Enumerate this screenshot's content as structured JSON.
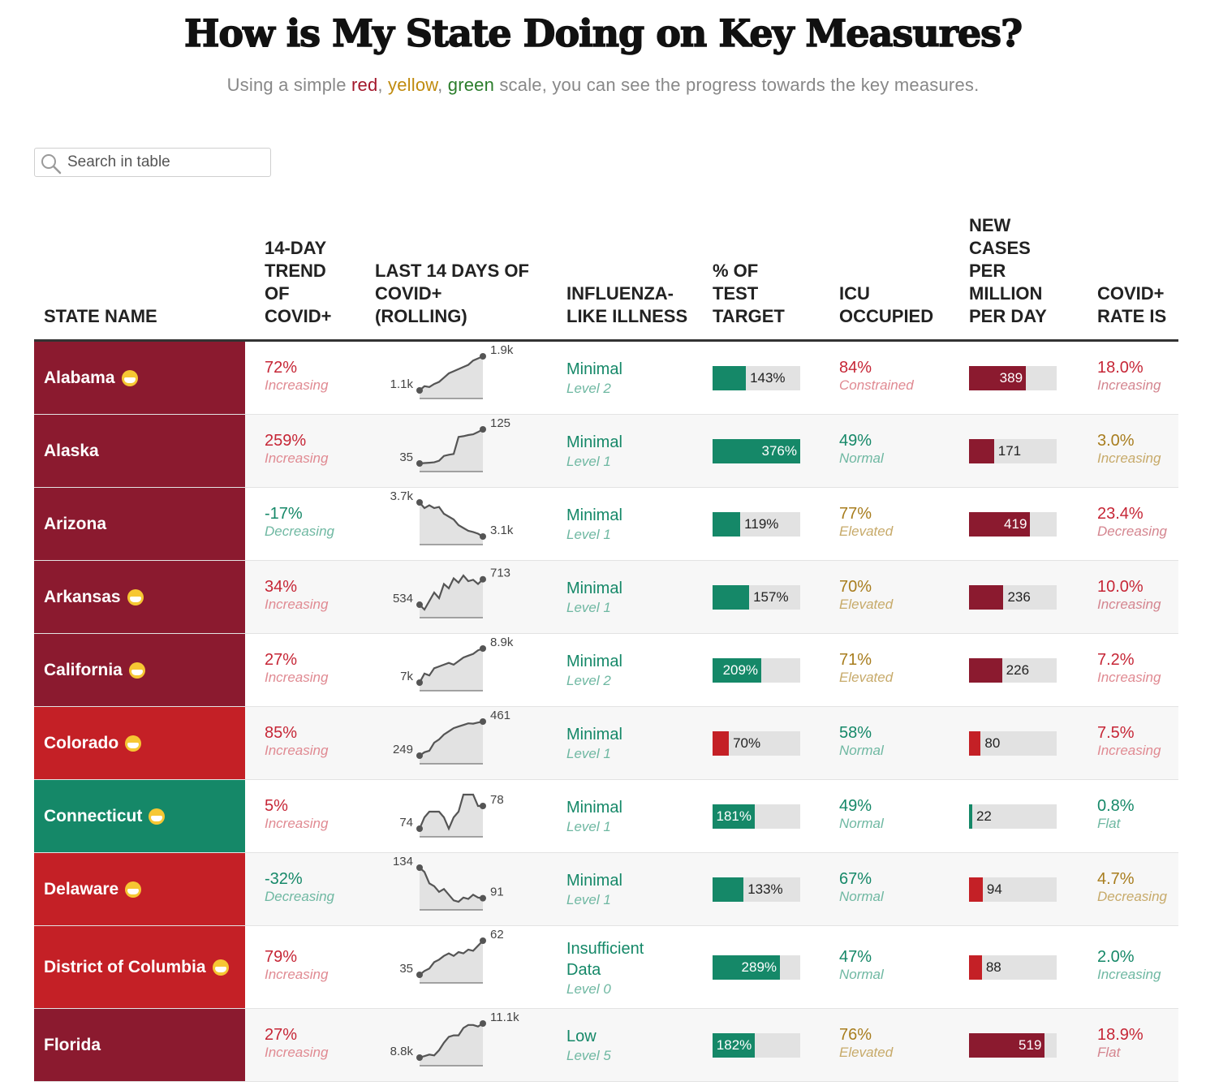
{
  "header": {
    "title": "How is My State Doing on Key Measures?",
    "subtitle_pre": "Using a simple ",
    "subtitle_red": "red",
    "subtitle_sep1": ", ",
    "subtitle_yellow": "yellow",
    "subtitle_sep2": ", ",
    "subtitle_green": "green",
    "subtitle_post": " scale, you can see the progress towards the key measures."
  },
  "search": {
    "placeholder": "Search in table",
    "value": ""
  },
  "columns": {
    "state": "STATE NAME",
    "trend": "14-DAY TREND OF COVID+",
    "spark": "LAST 14 DAYS OF COVID+ (ROLLING)",
    "ili": "INFLUENZA-LIKE ILLNESS",
    "test": "% OF TEST TARGET",
    "icu": "ICU OCCUPIED",
    "cases": "NEW CASES PER MILLION PER DAY",
    "rate": "COVID+ RATE IS"
  },
  "colors": {
    "dark_red": "#8b1a2f",
    "red": "#c42026",
    "green": "#158868",
    "yellow_text": "#a87d1e",
    "red_text": "#c62636",
    "green_text": "#158868",
    "bar_bg": "#e2e2e2"
  },
  "chart_data": {
    "type": "table",
    "rows": [
      {
        "state": "Alabama",
        "mask": true,
        "status": "dark_red",
        "trend": "72%",
        "trend_label": "Increasing",
        "trend_color": "red",
        "spark_start": "1.1k",
        "spark_end": "1.9k",
        "spark": [
          1.1,
          1.2,
          1.18,
          1.25,
          1.3,
          1.4,
          1.5,
          1.55,
          1.6,
          1.65,
          1.7,
          1.8,
          1.85,
          1.9
        ],
        "ili": "Minimal",
        "ili_level": "Level 2",
        "test": 143,
        "test_label": "143%",
        "test_color": "green",
        "icu": "84%",
        "icu_label": "Constrained",
        "icu_color": "red",
        "cases": 389,
        "cases_label": "389",
        "cases_color": "dark_red",
        "rate": "18.0%",
        "rate_label": "Increasing",
        "rate_color": "dark_red"
      },
      {
        "state": "Alaska",
        "mask": false,
        "status": "dark_red",
        "trend": "259%",
        "trend_label": "Increasing",
        "trend_color": "red",
        "spark_start": "35",
        "spark_end": "125",
        "spark": [
          35,
          36,
          37,
          38,
          42,
          55,
          58,
          60,
          105,
          107,
          110,
          112,
          118,
          125
        ],
        "ili": "Minimal",
        "ili_level": "Level 1",
        "test": 376,
        "test_label": "376%",
        "test_color": "green",
        "icu": "49%",
        "icu_label": "Normal",
        "icu_color": "green",
        "cases": 171,
        "cases_label": "171",
        "cases_color": "dark_red",
        "rate": "3.0%",
        "rate_label": "Increasing",
        "rate_color": "yellow"
      },
      {
        "state": "Arizona",
        "mask": false,
        "status": "dark_red",
        "trend": "-17%",
        "trend_label": "Decreasing",
        "trend_color": "green",
        "spark_start": "3.7k",
        "spark_end": "3.1k",
        "spark": [
          3.7,
          3.6,
          3.65,
          3.6,
          3.62,
          3.5,
          3.45,
          3.4,
          3.3,
          3.25,
          3.2,
          3.18,
          3.15,
          3.1
        ],
        "ili": "Minimal",
        "ili_level": "Level 1",
        "test": 119,
        "test_label": "119%",
        "test_color": "green",
        "icu": "77%",
        "icu_label": "Elevated",
        "icu_color": "yellow",
        "cases": 419,
        "cases_label": "419",
        "cases_color": "dark_red",
        "rate": "23.4%",
        "rate_label": "Decreasing",
        "rate_color": "dark_red"
      },
      {
        "state": "Arkansas",
        "mask": true,
        "status": "dark_red",
        "trend": "34%",
        "trend_label": "Increasing",
        "trend_color": "red",
        "spark_start": "534",
        "spark_end": "713",
        "spark": [
          534,
          500,
          560,
          620,
          580,
          680,
          650,
          720,
          690,
          740,
          700,
          710,
          680,
          713
        ],
        "ili": "Minimal",
        "ili_level": "Level 1",
        "test": 157,
        "test_label": "157%",
        "test_color": "green",
        "icu": "70%",
        "icu_label": "Elevated",
        "icu_color": "yellow",
        "cases": 236,
        "cases_label": "236",
        "cases_color": "dark_red",
        "rate": "10.0%",
        "rate_label": "Increasing",
        "rate_color": "dark_red"
      },
      {
        "state": "California",
        "mask": true,
        "status": "dark_red",
        "trend": "27%",
        "trend_label": "Increasing",
        "trend_color": "red",
        "spark_start": "7k",
        "spark_end": "8.9k",
        "spark": [
          7.0,
          7.5,
          7.4,
          7.8,
          7.9,
          8.0,
          8.1,
          8.0,
          8.2,
          8.4,
          8.5,
          8.6,
          8.8,
          8.9
        ],
        "ili": "Minimal",
        "ili_level": "Level 2",
        "test": 209,
        "test_label": "209%",
        "test_color": "green",
        "icu": "71%",
        "icu_label": "Elevated",
        "icu_color": "yellow",
        "cases": 226,
        "cases_label": "226",
        "cases_color": "dark_red",
        "rate": "7.2%",
        "rate_label": "Increasing",
        "rate_color": "red"
      },
      {
        "state": "Colorado",
        "mask": true,
        "status": "red",
        "trend": "85%",
        "trend_label": "Increasing",
        "trend_color": "red",
        "spark_start": "249",
        "spark_end": "461",
        "spark": [
          249,
          270,
          280,
          330,
          350,
          380,
          400,
          420,
          430,
          440,
          450,
          448,
          455,
          461
        ],
        "ili": "Minimal",
        "ili_level": "Level 1",
        "test": 70,
        "test_label": "70%",
        "test_color": "red",
        "icu": "58%",
        "icu_label": "Normal",
        "icu_color": "green",
        "cases": 80,
        "cases_label": "80",
        "cases_color": "red",
        "rate": "7.5%",
        "rate_label": "Increasing",
        "rate_color": "red"
      },
      {
        "state": "Connecticut",
        "mask": true,
        "status": "green",
        "trend": "5%",
        "trend_label": "Increasing",
        "trend_color": "red",
        "spark_start": "74",
        "spark_end": "78",
        "spark": [
          74,
          76,
          77,
          77,
          77,
          76,
          74,
          76,
          77,
          80,
          80,
          80,
          78,
          78
        ],
        "ili": "Minimal",
        "ili_level": "Level 1",
        "test": 181,
        "test_label": "181%",
        "test_color": "green",
        "icu": "49%",
        "icu_label": "Normal",
        "icu_color": "green",
        "cases": 22,
        "cases_label": "22",
        "cases_color": "green",
        "rate": "0.8%",
        "rate_label": "Flat",
        "rate_color": "green"
      },
      {
        "state": "Delaware",
        "mask": true,
        "status": "red",
        "trend": "-32%",
        "trend_label": "Decreasing",
        "trend_color": "green",
        "spark_start": "134",
        "spark_end": "91",
        "spark": [
          134,
          128,
          112,
          108,
          100,
          104,
          96,
          88,
          86,
          92,
          90,
          96,
          92,
          91
        ],
        "ili": "Minimal",
        "ili_level": "Level 1",
        "test": 133,
        "test_label": "133%",
        "test_color": "green",
        "icu": "67%",
        "icu_label": "Normal",
        "icu_color": "green",
        "cases": 94,
        "cases_label": "94",
        "cases_color": "red",
        "rate": "4.7%",
        "rate_label": "Decreasing",
        "rate_color": "yellow"
      },
      {
        "state": "District of Columbia",
        "mask": true,
        "status": "red",
        "trend": "79%",
        "trend_label": "Increasing",
        "trend_color": "red",
        "spark_start": "35",
        "spark_end": "62",
        "spark": [
          35,
          38,
          40,
          45,
          47,
          50,
          52,
          50,
          53,
          52,
          55,
          54,
          58,
          62
        ],
        "ili": "Insufficient Data",
        "ili_level": "Level 0",
        "test": 289,
        "test_label": "289%",
        "test_color": "green",
        "icu": "47%",
        "icu_label": "Normal",
        "icu_color": "green",
        "cases": 88,
        "cases_label": "88",
        "cases_color": "red",
        "rate": "2.0%",
        "rate_label": "Increasing",
        "rate_color": "green"
      },
      {
        "state": "Florida",
        "mask": false,
        "status": "dark_red",
        "trend": "27%",
        "trend_label": "Increasing",
        "trend_color": "red",
        "spark_start": "8.8k",
        "spark_end": "11.1k",
        "spark": [
          8.8,
          8.9,
          9.0,
          8.95,
          9.3,
          9.8,
          10.2,
          10.3,
          10.3,
          10.8,
          11.0,
          11.0,
          10.9,
          11.1
        ],
        "ili": "Low",
        "ili_level": "Level 5",
        "test": 182,
        "test_label": "182%",
        "test_color": "green",
        "icu": "76%",
        "icu_label": "Elevated",
        "icu_color": "yellow",
        "cases": 519,
        "cases_label": "519",
        "cases_color": "dark_red",
        "rate": "18.9%",
        "rate_label": "Flat",
        "rate_color": "dark_red"
      }
    ]
  }
}
